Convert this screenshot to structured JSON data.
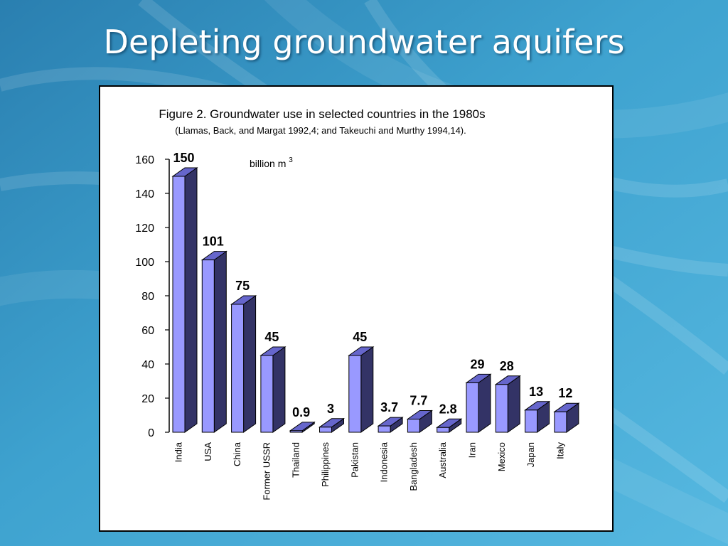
{
  "slide": {
    "title": "Depleting groundwater aquifers"
  },
  "colors": {
    "bar_front": "#9999ff",
    "bar_side": "#333366",
    "bar_top": "#6666cc",
    "panel_bg": "#ffffff",
    "text": "#000000"
  },
  "chart_data": {
    "type": "bar",
    "title": "Figure 2. Groundwater use in selected countries in the 1980s",
    "subtitle": "(Llamas, Back, and Margat 1992,4; and Takeuchi and Murthy 1994,14).",
    "unit_label": "billion m",
    "unit_superscript": "3",
    "categories": [
      "India",
      "USA",
      "China",
      "Former USSR",
      "Thailand",
      "Philippines",
      "Pakistan",
      "Indonesia",
      "Bangladesh",
      "Australia",
      "Iran",
      "Mexico",
      "Japan",
      "Italy"
    ],
    "values": [
      150,
      101,
      75,
      45,
      0.9,
      3,
      45,
      3.7,
      7.7,
      2.8,
      29,
      28,
      13,
      12
    ],
    "data_labels": [
      "150",
      "101",
      "75",
      "45",
      "0.9",
      "3",
      "45",
      "3.7",
      "7.7",
      "2.8",
      "29",
      "28",
      "13",
      "12"
    ],
    "yticks": [
      0,
      20,
      40,
      60,
      80,
      100,
      120,
      140,
      160
    ],
    "ylim": [
      0,
      160
    ],
    "grid": false,
    "style": "3d-columns"
  }
}
